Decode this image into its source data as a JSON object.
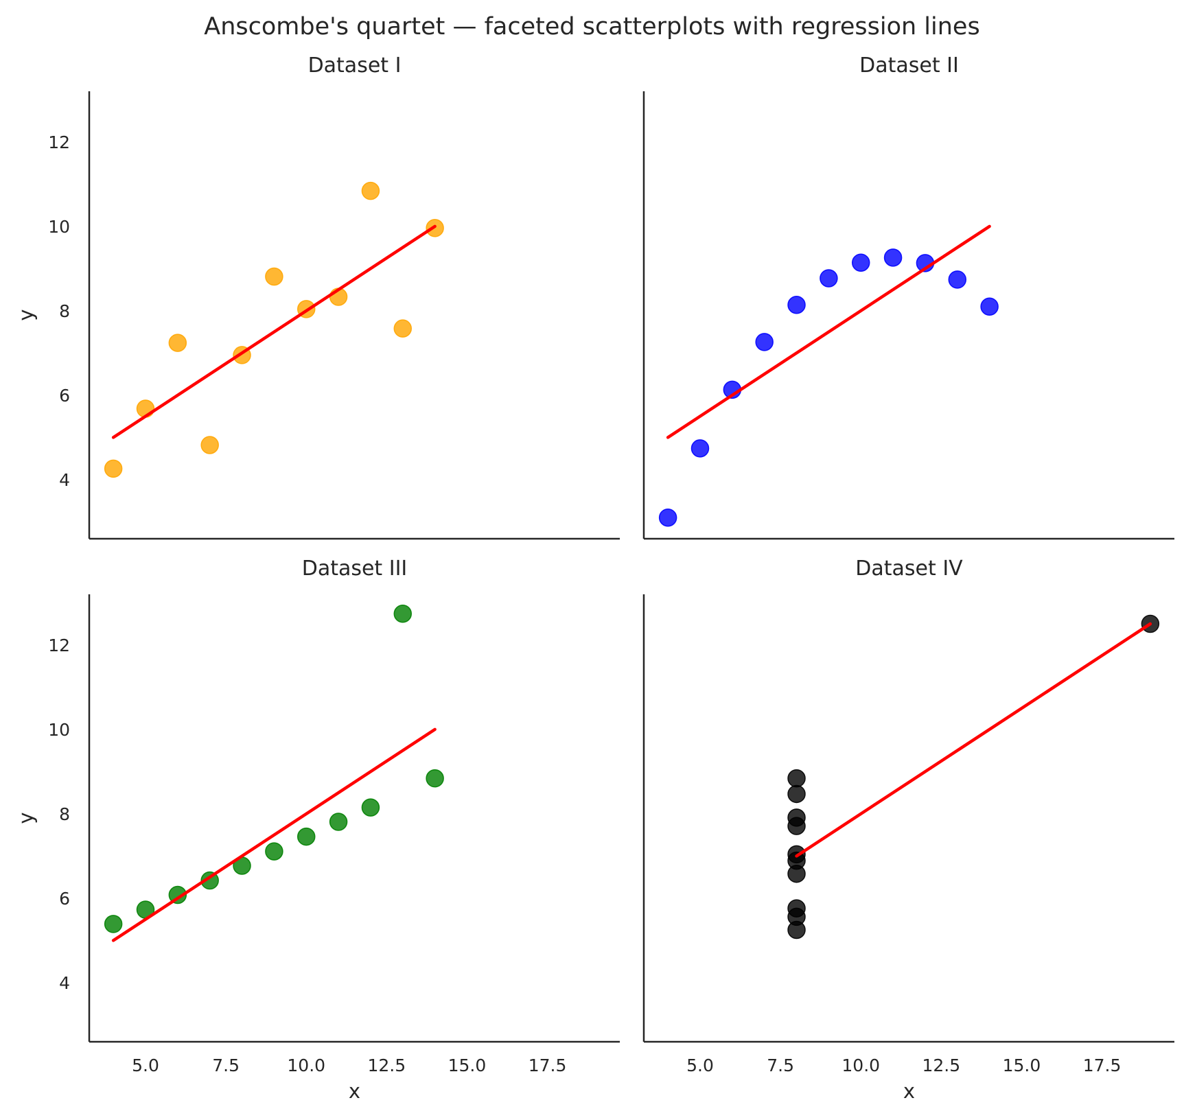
{
  "chart_data": {
    "type": "scatter",
    "title": "Anscombe's quartet — faceted scatterplots with regression lines",
    "xlabel": "x",
    "ylabel": "y",
    "xticks": [
      "5.0",
      "7.5",
      "10.0",
      "12.5",
      "15.0",
      "17.5"
    ],
    "yticks": [
      "4",
      "6",
      "8",
      "10",
      "12"
    ],
    "xlim": [
      3.25,
      19.75
    ],
    "ylim": [
      2.6,
      13.2
    ],
    "grid": false,
    "regression_line_color": "#ff0000",
    "panels": [
      {
        "title": "Dataset I",
        "color": "#ffa500",
        "x": [
          10,
          8,
          13,
          9,
          11,
          14,
          6,
          4,
          12,
          7,
          5
        ],
        "y": [
          8.04,
          6.95,
          7.58,
          8.81,
          8.33,
          9.96,
          7.24,
          4.26,
          10.84,
          4.82,
          5.68
        ],
        "regression": {
          "x": [
            4,
            14
          ],
          "y": [
            5.0,
            10.0
          ]
        }
      },
      {
        "title": "Dataset II",
        "color": "#0000ff",
        "x": [
          10,
          8,
          13,
          9,
          11,
          14,
          6,
          4,
          12,
          7,
          5
        ],
        "y": [
          9.14,
          8.14,
          8.74,
          8.77,
          9.26,
          8.1,
          6.13,
          3.1,
          9.13,
          7.26,
          4.74
        ],
        "regression": {
          "x": [
            4,
            14
          ],
          "y": [
            5.0,
            10.0
          ]
        }
      },
      {
        "title": "Dataset III",
        "color": "#008000",
        "x": [
          10,
          8,
          13,
          9,
          11,
          14,
          6,
          4,
          12,
          7,
          5
        ],
        "y": [
          7.46,
          6.77,
          12.74,
          7.11,
          7.81,
          8.84,
          6.08,
          5.39,
          8.15,
          6.42,
          5.73
        ],
        "regression": {
          "x": [
            4,
            14
          ],
          "y": [
            5.0,
            10.0
          ]
        }
      },
      {
        "title": "Dataset IV",
        "color": "#000000",
        "x": [
          8,
          8,
          8,
          8,
          8,
          8,
          8,
          19,
          8,
          8,
          8
        ],
        "y": [
          6.58,
          5.76,
          7.71,
          8.84,
          8.47,
          7.04,
          5.25,
          12.5,
          5.56,
          7.91,
          6.89
        ],
        "regression": {
          "x": [
            8,
            19
          ],
          "y": [
            7.0,
            12.5
          ]
        }
      }
    ]
  }
}
